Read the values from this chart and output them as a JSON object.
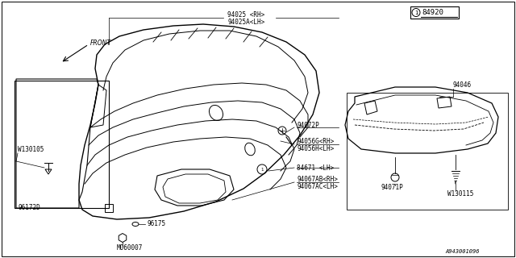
{
  "background_color": "#ffffff",
  "line_color": "#000000",
  "text_color": "#000000",
  "diagram_number": "84920",
  "footer_text": "A943001096",
  "labels": {
    "front_arrow": "FRONT",
    "part_94025": "94025 <RH>",
    "part_94025A": "94025A<LH>",
    "part_94072P": "94072P",
    "part_94056G": "94056G<RH>",
    "part_94056H": "94056H<LH>",
    "part_84671": "84671 <LH>",
    "part_94067AB": "94067AB<RH>",
    "part_94067AC": "94067AC<LH>",
    "part_96172D": "96172D",
    "part_M060007": "M060007",
    "part_96175": "96175",
    "part_W130105": "W130105",
    "part_94046": "94046",
    "part_94071P": "94071P",
    "part_W130115": "W130115"
  },
  "font_size": 5.5
}
